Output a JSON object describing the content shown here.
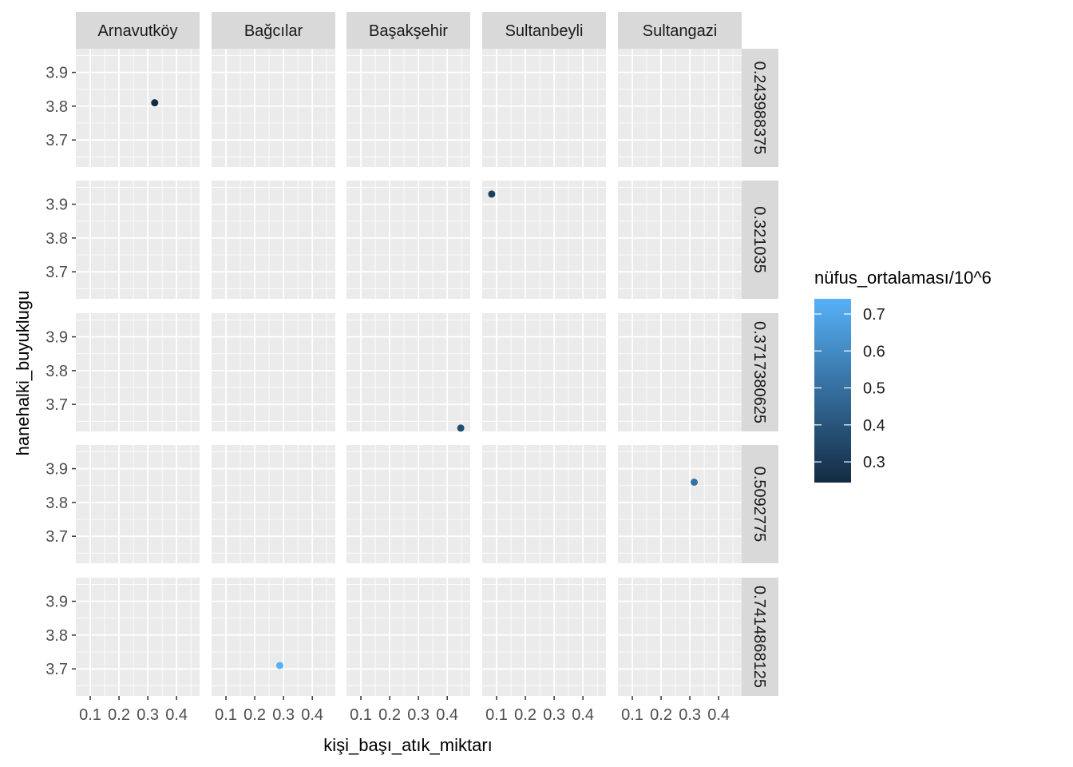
{
  "chart_data": {
    "type": "scatter",
    "xlabel": "kişi_başı_atık_miktarı",
    "ylabel": "hanehalki_buyuklugu",
    "facet_cols": [
      "Arnavutköy",
      "Bağcılar",
      "Başakşehir",
      "Sultanbeyli",
      "Sultangazi"
    ],
    "facet_rows": [
      "0.243988375",
      "0.321035",
      "0.3717380625",
      "0.5092775",
      "0.7414868125"
    ],
    "xlim": [
      0.05,
      0.48
    ],
    "ylim": [
      3.62,
      3.97
    ],
    "x_ticks": [
      0.1,
      0.2,
      0.3,
      0.4
    ],
    "x_tick_labels": [
      "0.1",
      "0.2",
      "0.3",
      "0.4"
    ],
    "y_ticks": [
      3.7,
      3.8,
      3.9
    ],
    "y_tick_labels": [
      "3.7",
      "3.8",
      "3.9"
    ],
    "grid": true,
    "legend": {
      "title": "nüfus_ortalaması/10^6",
      "position": "right",
      "breaks": [
        0.3,
        0.4,
        0.5,
        0.6,
        0.7
      ],
      "labels": [
        "0.3",
        "0.4",
        "0.5",
        "0.6",
        "0.7"
      ],
      "limits": [
        0.244,
        0.741
      ],
      "color_low": "#132B43",
      "color_high": "#56B1F7"
    },
    "points": [
      {
        "col": "Arnavutköy",
        "row": "0.243988375",
        "x": 0.324,
        "y": 3.81,
        "color_value": 0.244
      },
      {
        "col": "Sultanbeyli",
        "row": "0.321035",
        "x": 0.083,
        "y": 3.93,
        "color_value": 0.321
      },
      {
        "col": "Başakşehir",
        "row": "0.3717380625",
        "x": 0.447,
        "y": 3.63,
        "color_value": 0.372
      },
      {
        "col": "Sultangazi",
        "row": "0.5092775",
        "x": 0.315,
        "y": 3.86,
        "color_value": 0.509
      },
      {
        "col": "Bağcılar",
        "row": "0.7414868125",
        "x": 0.287,
        "y": 3.71,
        "color_value": 0.741
      }
    ]
  }
}
